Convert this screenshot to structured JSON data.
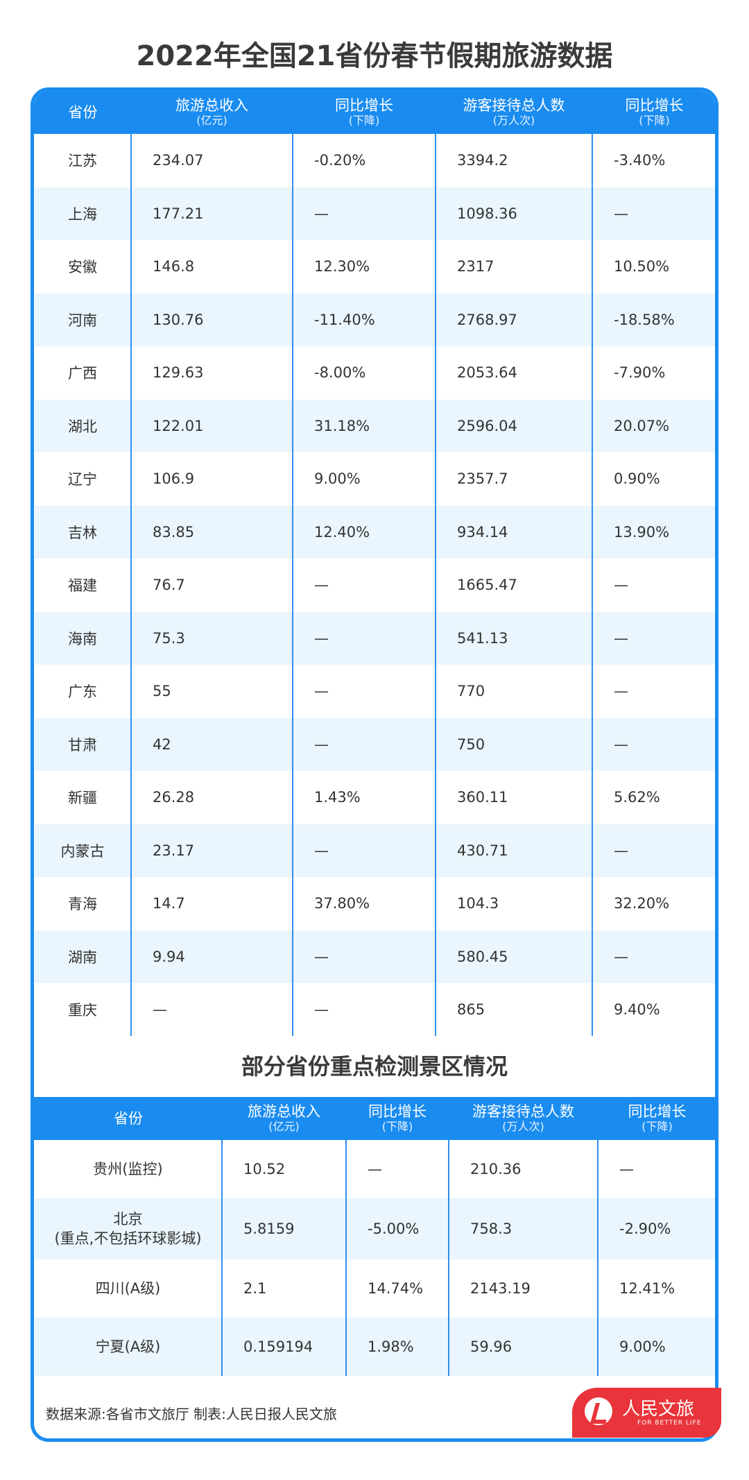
{
  "title": "2022年全国21省份春节假期旅游数据",
  "table1": {
    "headers": [
      {
        "main": "省份",
        "sub": ""
      },
      {
        "main": "旅游总收入",
        "sub": "(亿元)"
      },
      {
        "main": "同比增长",
        "sub": "(下降)"
      },
      {
        "main": "游客接待总人数",
        "sub": "(万人次)"
      },
      {
        "main": "同比增长",
        "sub": "(下降)"
      }
    ],
    "rows": [
      [
        "江苏",
        "234.07",
        "-0.20%",
        "3394.2",
        "-3.40%"
      ],
      [
        "上海",
        "177.21",
        "—",
        "1098.36",
        "—"
      ],
      [
        "安徽",
        "146.8",
        "12.30%",
        "2317",
        "10.50%"
      ],
      [
        "河南",
        "130.76",
        "-11.40%",
        "2768.97",
        "-18.58%"
      ],
      [
        "广西",
        "129.63",
        "-8.00%",
        "2053.64",
        "-7.90%"
      ],
      [
        "湖北",
        "122.01",
        "31.18%",
        "2596.04",
        "20.07%"
      ],
      [
        "辽宁",
        "106.9",
        "9.00%",
        "2357.7",
        "0.90%"
      ],
      [
        "吉林",
        "83.85",
        "12.40%",
        "934.14",
        "13.90%"
      ],
      [
        "福建",
        "76.7",
        "—",
        "1665.47",
        "—"
      ],
      [
        "海南",
        "75.3",
        "—",
        "541.13",
        "—"
      ],
      [
        "广东",
        "55",
        "—",
        "770",
        "—"
      ],
      [
        "甘肃",
        "42",
        "—",
        "750",
        "—"
      ],
      [
        "新疆",
        "26.28",
        "1.43%",
        "360.11",
        "5.62%"
      ],
      [
        "内蒙古",
        "23.17",
        "—",
        "430.71",
        "—"
      ],
      [
        "青海",
        "14.7",
        "37.80%",
        "104.3",
        "32.20%"
      ],
      [
        "湖南",
        "9.94",
        "—",
        "580.45",
        "—"
      ],
      [
        "重庆",
        "—",
        "—",
        "865",
        "9.40%"
      ]
    ]
  },
  "section2_title": "部分省份重点检测景区情况",
  "table2": {
    "headers": [
      {
        "main": "省份",
        "sub": ""
      },
      {
        "main": "旅游总收入",
        "sub": "(亿元)"
      },
      {
        "main": "同比增长",
        "sub": "(下降)"
      },
      {
        "main": "游客接待总人数",
        "sub": "(万人次)"
      },
      {
        "main": "同比增长",
        "sub": "(下降)"
      }
    ],
    "rows": [
      {
        "name": "贵州(监控)",
        "name2": "",
        "values": [
          "10.52",
          "—",
          "210.36",
          "—"
        ]
      },
      {
        "name": "北京",
        "name2": "(重点,不包括环球影城)",
        "values": [
          "5.8159",
          "-5.00%",
          "758.3",
          "-2.90%"
        ]
      },
      {
        "name": "四川(A级)",
        "name2": "",
        "values": [
          "2.1",
          "14.74%",
          "2143.19",
          "12.41%"
        ]
      },
      {
        "name": "宁夏(A级)",
        "name2": "",
        "values": [
          "0.159194",
          "1.98%",
          "59.96",
          "9.00%"
        ]
      }
    ]
  },
  "footer": "数据来源:各省市文旅厅 制表:人民日报人民文旅",
  "logo": {
    "text": "人民文旅",
    "slogan": "FOR BETTER LIFE"
  },
  "colors": {
    "accent": "#1a8cf0",
    "stripe": "#eaf5fd",
    "logo": "#e8343a"
  }
}
